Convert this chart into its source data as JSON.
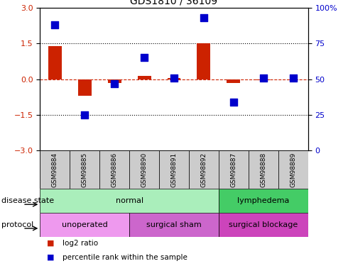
{
  "title": "GDS1810 / 36109",
  "samples": [
    "GSM98884",
    "GSM98885",
    "GSM98886",
    "GSM98890",
    "GSM98891",
    "GSM98892",
    "GSM98887",
    "GSM98888",
    "GSM98889"
  ],
  "log2_ratio": [
    1.4,
    -0.7,
    -0.15,
    0.15,
    0.05,
    1.5,
    -0.15,
    -0.05,
    0.0
  ],
  "percentile_rank": [
    88,
    25,
    47,
    65,
    51,
    93,
    34,
    51,
    51
  ],
  "ylim_left": [
    -3,
    3
  ],
  "ylim_right": [
    0,
    100
  ],
  "yticks_left": [
    -3,
    -1.5,
    0,
    1.5,
    3
  ],
  "yticks_right": [
    0,
    25,
    50,
    75,
    100
  ],
  "hlines_dotted": [
    -1.5,
    1.5
  ],
  "hline_dashed": 0,
  "bar_color": "#cc2200",
  "dot_color": "#0000cc",
  "bar_width": 0.45,
  "dot_size": 55,
  "disease_state_groups": [
    {
      "label": "normal",
      "start": 0,
      "end": 6,
      "color": "#aaeebb"
    },
    {
      "label": "lymphedema",
      "start": 6,
      "end": 9,
      "color": "#44cc66"
    }
  ],
  "protocol_groups": [
    {
      "label": "unoperated",
      "start": 0,
      "end": 3,
      "color": "#ee99ee"
    },
    {
      "label": "surgical sham",
      "start": 3,
      "end": 6,
      "color": "#cc66cc"
    },
    {
      "label": "surgical blockage",
      "start": 6,
      "end": 9,
      "color": "#cc44bb"
    }
  ],
  "legend_items": [
    {
      "label": "log2 ratio",
      "color": "#cc2200"
    },
    {
      "label": "percentile rank within the sample",
      "color": "#0000cc"
    }
  ],
  "left_tick_color": "#cc2200",
  "right_tick_color": "#0000cc",
  "label_disease": "disease state",
  "label_protocol": "protocol",
  "bg_sample_color": "#cccccc",
  "title_fontsize": 10,
  "tick_fontsize": 8,
  "sample_fontsize": 6.5,
  "row_label_fontsize": 8,
  "legend_fontsize": 7.5
}
